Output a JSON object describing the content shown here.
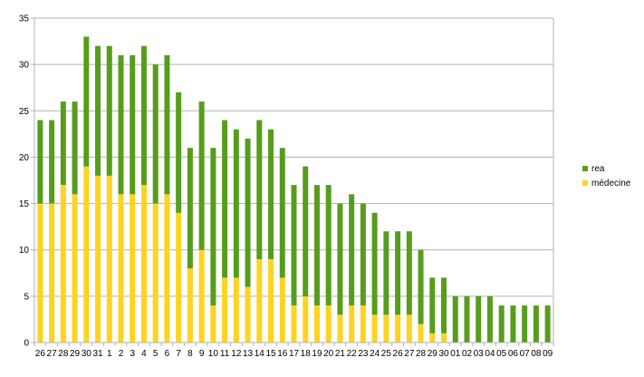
{
  "chart_data": {
    "type": "bar",
    "stacked": true,
    "categories": [
      "26",
      "27",
      "28",
      "29",
      "30",
      "31",
      "1",
      "2",
      "3",
      "4",
      "5",
      "6",
      "7",
      "8",
      "9",
      "10",
      "11",
      "12",
      "13",
      "14",
      "15",
      "16",
      "17",
      "18",
      "19",
      "20",
      "21",
      "22",
      "23",
      "24",
      "25",
      "26",
      "27",
      "28",
      "29",
      "30",
      "01",
      "02",
      "03",
      "04",
      "05",
      "06",
      "07",
      "08",
      "09"
    ],
    "series": [
      {
        "name": "médecine",
        "color": "#ffd320",
        "values": [
          15,
          15,
          17,
          16,
          19,
          18,
          18,
          16,
          16,
          17,
          15,
          16,
          14,
          8,
          10,
          4,
          7,
          7,
          6,
          9,
          9,
          7,
          4,
          5,
          4,
          4,
          3,
          4,
          4,
          3,
          3,
          3,
          3,
          2,
          1,
          1,
          0,
          0,
          0,
          0,
          0,
          0,
          0,
          0,
          0
        ]
      },
      {
        "name": "rea",
        "color": "#579d1c",
        "values": [
          9,
          9,
          9,
          10,
          14,
          14,
          14,
          15,
          15,
          15,
          15,
          15,
          13,
          13,
          16,
          17,
          17,
          16,
          16,
          15,
          14,
          14,
          13,
          14,
          13,
          13,
          12,
          12,
          11,
          11,
          9,
          9,
          9,
          8,
          6,
          6,
          5,
          5,
          5,
          5,
          4,
          4,
          4,
          4,
          4
        ]
      }
    ],
    "ylim": [
      0,
      35
    ],
    "yticks": [
      0,
      5,
      10,
      15,
      20,
      25,
      30,
      35
    ],
    "grid": true,
    "legend_position": "right",
    "title": "",
    "xlabel": "",
    "ylabel": ""
  }
}
